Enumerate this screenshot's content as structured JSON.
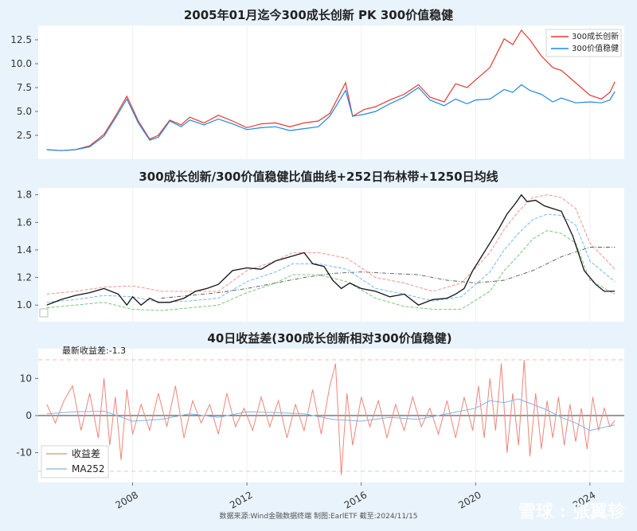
{
  "chart_data": [
    {
      "type": "line",
      "title": "2005年01月迄今300成长创新 PK 300价值稳健",
      "ylim": [
        0,
        14
      ],
      "yticks": [
        "2.5",
        "5.0",
        "7.5",
        "10.0",
        "12.5"
      ],
      "legend_position": "top-right",
      "colors": {
        "growth": "#e8392f",
        "value": "#1e88e5"
      },
      "series": [
        {
          "name": "300成长创新",
          "x": [
            2005.0,
            2005.5,
            2006.0,
            2006.5,
            2007.0,
            2007.4,
            2007.8,
            2008.2,
            2008.6,
            2008.9,
            2009.3,
            2009.7,
            2010.0,
            2010.5,
            2011.0,
            2011.5,
            2012.0,
            2012.5,
            2013.0,
            2013.5,
            2014.0,
            2014.5,
            2014.9,
            2015.45,
            2015.7,
            2016.1,
            2016.5,
            2017.0,
            2017.5,
            2018.0,
            2018.4,
            2018.9,
            2019.3,
            2019.7,
            2020.0,
            2020.5,
            2021.0,
            2021.3,
            2021.6,
            2021.9,
            2022.3,
            2022.7,
            2023.0,
            2023.5,
            2024.0,
            2024.4,
            2024.7,
            2024.87
          ],
          "values": [
            1.0,
            0.9,
            1.0,
            1.4,
            2.6,
            4.5,
            6.6,
            4.0,
            2.1,
            2.5,
            4.1,
            3.6,
            4.4,
            3.8,
            4.6,
            4.0,
            3.3,
            3.7,
            3.8,
            3.4,
            3.8,
            4.0,
            4.8,
            8.0,
            4.5,
            5.2,
            5.5,
            6.2,
            6.8,
            7.8,
            6.5,
            6.0,
            7.9,
            7.5,
            8.3,
            9.6,
            12.6,
            12.0,
            13.5,
            12.5,
            10.8,
            9.6,
            9.3,
            8.0,
            6.7,
            6.3,
            7.0,
            8.1
          ]
        },
        {
          "name": "300价值稳健",
          "x": [
            2005.0,
            2005.5,
            2006.0,
            2006.5,
            2007.0,
            2007.4,
            2007.8,
            2008.2,
            2008.6,
            2008.9,
            2009.3,
            2009.7,
            2010.0,
            2010.5,
            2011.0,
            2011.5,
            2012.0,
            2012.5,
            2013.0,
            2013.5,
            2014.0,
            2014.5,
            2014.9,
            2015.45,
            2015.7,
            2016.1,
            2016.5,
            2017.0,
            2017.5,
            2018.0,
            2018.4,
            2018.9,
            2019.3,
            2019.7,
            2020.0,
            2020.5,
            2021.0,
            2021.3,
            2021.6,
            2021.9,
            2022.3,
            2022.7,
            2023.0,
            2023.5,
            2024.0,
            2024.4,
            2024.7,
            2024.87
          ],
          "values": [
            1.0,
            0.9,
            1.0,
            1.3,
            2.4,
            4.3,
            6.3,
            3.8,
            2.0,
            2.3,
            4.0,
            3.4,
            4.1,
            3.6,
            4.2,
            3.7,
            3.1,
            3.3,
            3.4,
            3.0,
            3.2,
            3.4,
            4.5,
            7.2,
            4.5,
            4.7,
            5.0,
            5.8,
            6.5,
            7.5,
            6.2,
            5.6,
            6.3,
            5.8,
            6.2,
            6.3,
            7.3,
            7.0,
            7.8,
            7.2,
            6.8,
            6.0,
            6.4,
            5.9,
            6.0,
            5.9,
            6.2,
            7.1
          ]
        }
      ]
    },
    {
      "type": "line",
      "title": "300成长创新/300价值稳健比值曲线+252日布林带+1250日均线",
      "ylim": [
        0.88,
        1.85
      ],
      "yticks": [
        "1.0",
        "1.2",
        "1.4",
        "1.6",
        "1.8"
      ],
      "colors": {
        "ratio": "#111111",
        "upper": "#f08a80",
        "lower": "#6cc26c",
        "mid": "#66b2f0",
        "ma": "#555555"
      },
      "series": [
        {
          "x": [
            2005.0,
            2005.5,
            2006.0,
            2006.5,
            2007.0,
            2007.5,
            2007.8,
            2008.0,
            2008.3,
            2008.6,
            2008.9,
            2009.3,
            2009.8,
            2010.2,
            2010.6,
            2011.0,
            2011.5,
            2012.0,
            2012.5,
            2013.0,
            2013.5,
            2014.0,
            2014.3,
            2014.7,
            2015.0,
            2015.3,
            2015.6,
            2016.0,
            2016.5,
            2017.0,
            2017.5,
            2018.0,
            2018.5,
            2019.0,
            2019.3,
            2019.6,
            2019.9,
            2020.2,
            2020.5,
            2020.8,
            2021.1,
            2021.4,
            2021.6,
            2021.8,
            2022.1,
            2022.4,
            2022.7,
            2023.0,
            2023.4,
            2023.8,
            2024.2,
            2024.5,
            2024.87
          ],
          "values": [
            1.0,
            1.04,
            1.07,
            1.09,
            1.12,
            1.08,
            1.0,
            1.06,
            1.0,
            1.05,
            1.02,
            1.02,
            1.05,
            1.1,
            1.12,
            1.15,
            1.25,
            1.27,
            1.26,
            1.32,
            1.35,
            1.38,
            1.3,
            1.28,
            1.18,
            1.12,
            1.16,
            1.12,
            1.1,
            1.06,
            1.08,
            1.0,
            1.04,
            1.05,
            1.08,
            1.12,
            1.25,
            1.35,
            1.45,
            1.55,
            1.66,
            1.74,
            1.8,
            1.75,
            1.76,
            1.72,
            1.7,
            1.68,
            1.5,
            1.25,
            1.15,
            1.1,
            1.1
          ]
        },
        {
          "x": [
            2005.0,
            2006.0,
            2007.0,
            2008.0,
            2009.0,
            2010.0,
            2011.0,
            2012.0,
            2013.0,
            2013.6,
            2014.5,
            2015.5,
            2016.5,
            2017.5,
            2018.5,
            2019.5,
            2020.5,
            2021.0,
            2021.5,
            2022.0,
            2022.5,
            2023.0,
            2023.5,
            2024.0,
            2024.87
          ],
          "values": [
            1.08,
            1.1,
            1.13,
            1.14,
            1.1,
            1.1,
            1.1,
            1.25,
            1.32,
            1.38,
            1.38,
            1.34,
            1.2,
            1.16,
            1.1,
            1.16,
            1.38,
            1.55,
            1.68,
            1.78,
            1.8,
            1.78,
            1.7,
            1.45,
            1.26
          ]
        },
        {
          "x": [
            2005.0,
            2006.0,
            2007.0,
            2008.0,
            2009.0,
            2010.0,
            2011.0,
            2012.0,
            2013.0,
            2013.6,
            2014.5,
            2015.5,
            2016.5,
            2017.5,
            2018.5,
            2019.5,
            2020.5,
            2021.0,
            2021.5,
            2022.0,
            2022.5,
            2023.0,
            2023.5,
            2024.0,
            2024.87
          ],
          "values": [
            1.02,
            1.04,
            1.07,
            1.06,
            1.02,
            1.03,
            1.05,
            1.17,
            1.24,
            1.3,
            1.3,
            1.26,
            1.12,
            1.08,
            1.03,
            1.06,
            1.24,
            1.4,
            1.52,
            1.62,
            1.66,
            1.65,
            1.58,
            1.32,
            1.17
          ]
        },
        {
          "x": [
            2005.0,
            2006.0,
            2007.0,
            2008.0,
            2009.0,
            2010.0,
            2011.0,
            2012.0,
            2013.0,
            2013.6,
            2014.5,
            2015.5,
            2016.5,
            2017.5,
            2018.5,
            2019.5,
            2020.5,
            2021.0,
            2021.5,
            2022.0,
            2022.5,
            2023.0,
            2023.5,
            2024.0,
            2024.87
          ],
          "values": [
            0.98,
            1.0,
            1.02,
            0.97,
            0.96,
            0.98,
            1.0,
            1.09,
            1.16,
            1.22,
            1.22,
            1.17,
            1.05,
            0.99,
            0.97,
            0.97,
            1.1,
            1.25,
            1.36,
            1.48,
            1.54,
            1.52,
            1.45,
            1.18,
            1.08
          ]
        },
        {
          "x": [
            2009.0,
            2010.0,
            2011.0,
            2012.0,
            2013.0,
            2014.0,
            2015.0,
            2016.0,
            2017.0,
            2018.0,
            2019.0,
            2020.0,
            2021.0,
            2022.0,
            2023.0,
            2024.0,
            2024.87
          ],
          "values": [
            1.05,
            1.07,
            1.09,
            1.12,
            1.16,
            1.2,
            1.23,
            1.24,
            1.23,
            1.22,
            1.18,
            1.16,
            1.18,
            1.25,
            1.35,
            1.42,
            1.42
          ]
        }
      ]
    },
    {
      "type": "line",
      "title": "40日收益差(300成长创新相对300价值稳健)",
      "ylim": [
        -18,
        18
      ],
      "yticks": [
        "-10",
        "0",
        "10"
      ],
      "reference_lines": [
        15,
        -15,
        0
      ],
      "legend_position": "bottom-left",
      "annotation": "最新收益差:-1.3",
      "colors": {
        "diff": "#f0857a",
        "ma": "#7fb5e8"
      },
      "series": [
        {
          "name": "收益差",
          "x": [
            2005.0,
            2005.3,
            2005.6,
            2005.9,
            2006.2,
            2006.5,
            2006.8,
            2007.0,
            2007.2,
            2007.4,
            2007.6,
            2007.8,
            2008.0,
            2008.3,
            2008.6,
            2008.9,
            2009.2,
            2009.5,
            2009.8,
            2010.1,
            2010.4,
            2010.7,
            2011.0,
            2011.3,
            2011.6,
            2011.9,
            2012.2,
            2012.5,
            2012.8,
            2013.1,
            2013.4,
            2013.7,
            2014.0,
            2014.3,
            2014.6,
            2014.9,
            2015.1,
            2015.3,
            2015.5,
            2015.7,
            2016.0,
            2016.3,
            2016.6,
            2016.9,
            2017.2,
            2017.5,
            2017.8,
            2018.1,
            2018.4,
            2018.7,
            2019.0,
            2019.3,
            2019.6,
            2019.9,
            2020.1,
            2020.3,
            2020.5,
            2020.7,
            2020.9,
            2021.1,
            2021.3,
            2021.5,
            2021.7,
            2021.9,
            2022.1,
            2022.3,
            2022.5,
            2022.7,
            2022.9,
            2023.1,
            2023.3,
            2023.5,
            2023.7,
            2023.9,
            2024.1,
            2024.3,
            2024.5,
            2024.7,
            2024.87
          ],
          "values": [
            3,
            -2,
            4,
            8,
            -4,
            6,
            -6,
            10,
            -8,
            5,
            -12,
            7,
            -5,
            3,
            -4,
            6,
            -3,
            8,
            -6,
            4,
            -2,
            3,
            -5,
            6,
            -3,
            2,
            -4,
            5,
            -3,
            4,
            -6,
            3,
            -4,
            7,
            -5,
            8,
            14,
            -16,
            6,
            -8,
            5,
            -3,
            4,
            -6,
            3,
            -4,
            5,
            -3,
            2,
            -5,
            4,
            -6,
            5,
            -4,
            8,
            -6,
            10,
            -4,
            14,
            -10,
            6,
            -8,
            15,
            -11,
            6,
            -9,
            4,
            -6,
            5,
            -8,
            3,
            -7,
            2,
            -9,
            5,
            -4,
            2,
            -3,
            -1.3
          ]
        },
        {
          "name": "MA252",
          "x": [
            2005.0,
            2006.0,
            2007.0,
            2008.0,
            2009.0,
            2010.0,
            2011.0,
            2012.0,
            2013.0,
            2014.0,
            2015.0,
            2016.0,
            2017.0,
            2018.0,
            2019.0,
            2020.0,
            2020.5,
            2021.0,
            2021.5,
            2022.0,
            2022.5,
            2023.0,
            2023.5,
            2024.0,
            2024.87
          ],
          "values": [
            0.5,
            1.0,
            1.2,
            -1.5,
            -1.0,
            0.5,
            -0.5,
            1.0,
            0.8,
            0.5,
            -1.0,
            -1.5,
            -0.5,
            -1.0,
            0.5,
            2.0,
            4.0,
            3.5,
            4.5,
            3.0,
            1.5,
            -0.5,
            -2.0,
            -4.0,
            -2.5
          ]
        }
      ]
    }
  ],
  "x_axis": {
    "ticks": [
      "2008",
      "2012",
      "2016",
      "2020",
      "2024"
    ],
    "range": [
      2004.7,
      2025.2
    ]
  },
  "footer": "数据来源:Wind金融数据终端  制图:EarlETF 截至:2024/11/15",
  "watermark": "雪球 : 张翼轸"
}
